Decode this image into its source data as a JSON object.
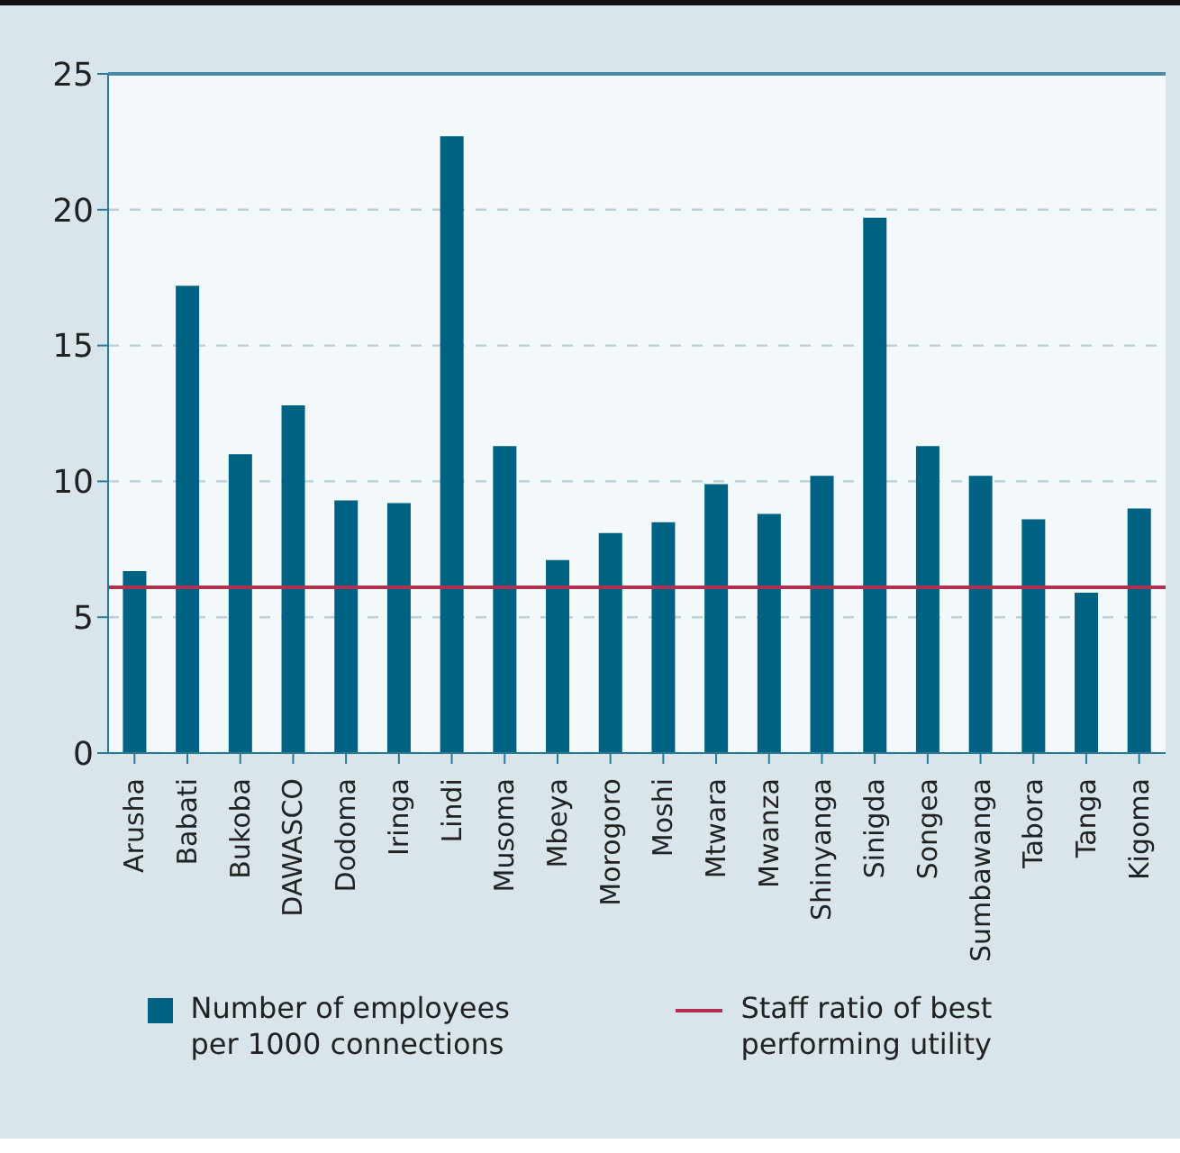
{
  "chart_data": {
    "type": "bar",
    "categories": [
      "Arusha",
      "Babati",
      "Bukoba",
      "DAWASCO",
      "Dodoma",
      "Iringa",
      "Lindi",
      "Musoma",
      "Mbeya",
      "Morogoro",
      "Moshi",
      "Mtwara",
      "Mwanza",
      "Shinyanga",
      "Sinigda",
      "Songea",
      "Sumbawanga",
      "Tabora",
      "Tanga",
      "Kigoma"
    ],
    "series": [
      {
        "name": "Number of employees per 1000 connections",
        "color": "#006282",
        "values": [
          6.7,
          17.2,
          11.0,
          12.8,
          9.3,
          9.2,
          22.7,
          11.3,
          7.1,
          8.1,
          8.5,
          9.9,
          8.8,
          10.2,
          19.7,
          11.3,
          10.2,
          8.6,
          5.9,
          9.0
        ]
      }
    ],
    "ref_lines": [
      {
        "axis": "y",
        "value": 6.1,
        "label": "Staff ratio of best performing utility",
        "color": "#b0304f"
      }
    ],
    "ylim": [
      0,
      25
    ],
    "yticks": [
      0,
      5,
      10,
      15,
      20,
      25
    ],
    "grid": "y",
    "legend": "bottom"
  }
}
